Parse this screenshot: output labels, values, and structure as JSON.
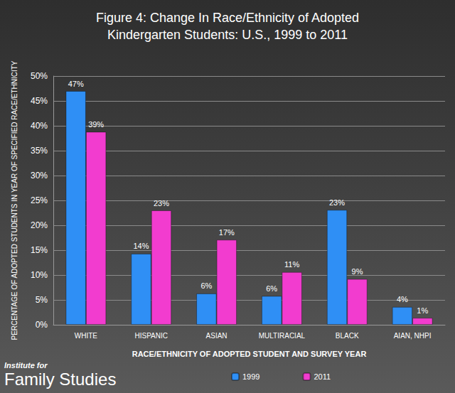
{
  "chart_data": {
    "type": "bar",
    "title": "Figure 4: Change In Race/Ethnicity of Adopted\nKindergarten Students: U.S., 1999 to 2011",
    "x_label": "RACE/ETHNICITY OF ADOPTED STUDENT AND SURVEY YEAR",
    "y_label": "PERCENTAGE OF ADOPTED STUDENTS IN YEAR OF SPECIFIED RACE/ETHNICITY",
    "categories": [
      "WHITE",
      "HISPANIC",
      "ASIAN",
      "MULTIRACIAL",
      "BLACK",
      "AIAN, NHPI"
    ],
    "series": [
      {
        "name": "1999",
        "color": "#2f8ff5",
        "values": [
          47,
          14.3,
          6.3,
          5.8,
          23.1,
          3.6
        ],
        "value_labels": [
          "47%",
          "14%",
          "6%",
          "6%",
          "23%",
          "4%"
        ]
      },
      {
        "name": "2011",
        "color": "#f23ccf",
        "values": [
          38.8,
          23,
          17.1,
          10.6,
          9.2,
          1.4
        ],
        "value_labels": [
          "39%",
          "23%",
          "17%",
          "11%",
          "9%",
          "1%"
        ]
      }
    ],
    "ylim": [
      0,
      50
    ],
    "yticks": [
      {
        "value": 0,
        "label": "0%"
      },
      {
        "value": 5,
        "label": "5%"
      },
      {
        "value": 10,
        "label": "10%"
      },
      {
        "value": 15,
        "label": "15%"
      },
      {
        "value": 20,
        "label": "20%"
      },
      {
        "value": 25,
        "label": "25%"
      },
      {
        "value": 30,
        "label": "30%"
      },
      {
        "value": 35,
        "label": "35%"
      },
      {
        "value": 40,
        "label": "40%"
      },
      {
        "value": 45,
        "label": "45%"
      },
      {
        "value": 50,
        "label": "50%"
      }
    ],
    "grid": true,
    "legend": "bottom",
    "data_labels": true,
    "annotations": [
      "Institute for",
      "Family Studies"
    ]
  }
}
